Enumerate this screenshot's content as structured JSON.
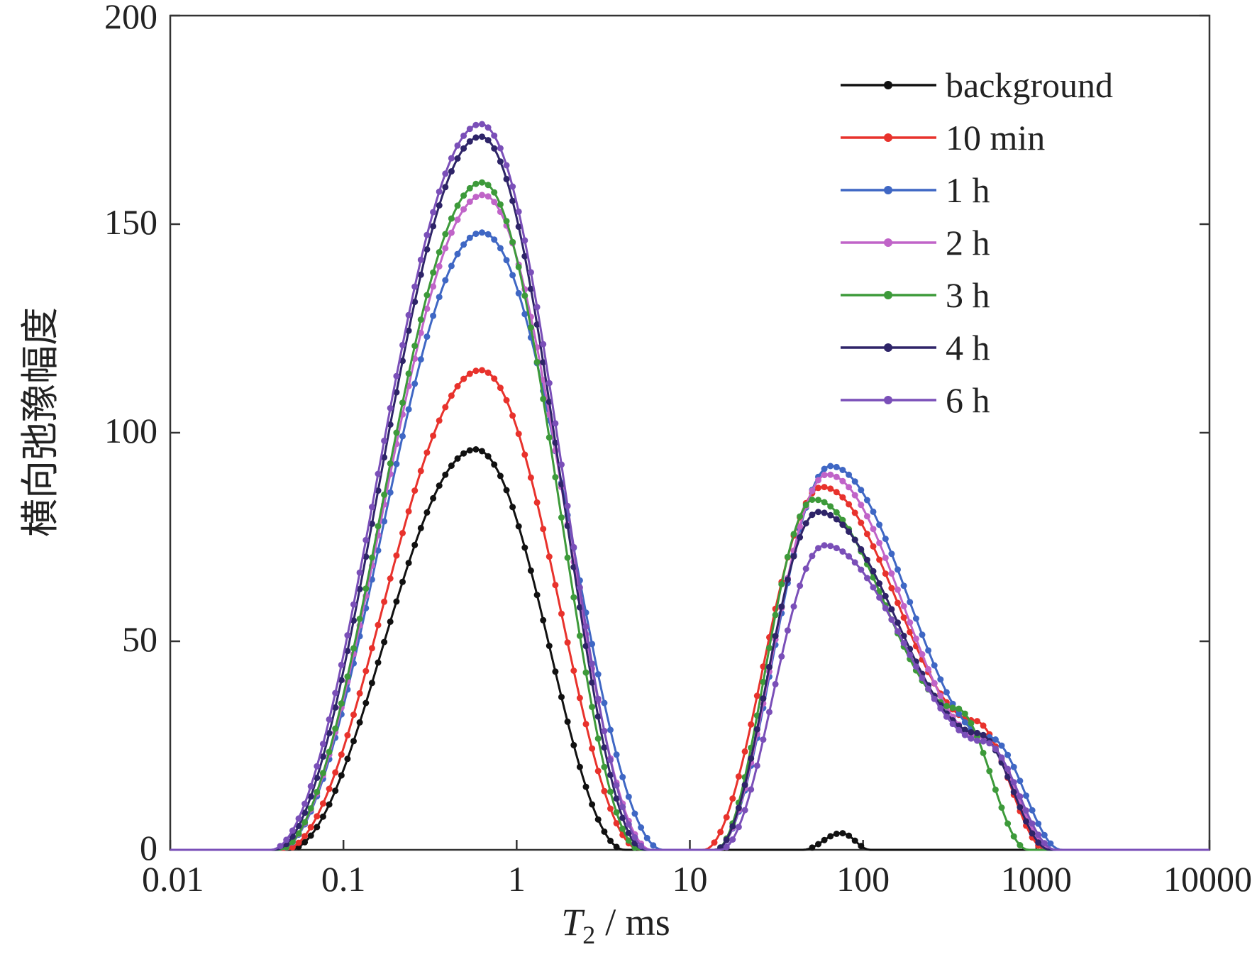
{
  "chart_data": {
    "type": "line",
    "title": "",
    "xlabel": "T2 / ms",
    "xlabel_parts": {
      "symbol": "T",
      "subscript": "2",
      "unit": "/ ms"
    },
    "ylabel": "横向弛豫幅度",
    "xscale": "log",
    "xlim": [
      0.01,
      10000
    ],
    "ylim": [
      0,
      200
    ],
    "x_ticks": [
      0.01,
      0.1,
      1,
      10,
      100,
      1000,
      10000
    ],
    "x_tick_labels": [
      "0.01",
      "0.1",
      "1",
      "10",
      "100",
      "1000",
      "10000"
    ],
    "y_ticks": [
      0,
      50,
      100,
      150,
      200
    ],
    "y_tick_labels": [
      "0",
      "50",
      "100",
      "150",
      "200"
    ],
    "legend_position": "top-right",
    "series": [
      {
        "name": "background",
        "color": "#111111",
        "peaks": [
          {
            "center": 0.58,
            "amp": 96,
            "start": 0.048,
            "end": 4.2,
            "bump": 0
          },
          {
            "center": 75,
            "amp": 4,
            "start": 45,
            "end": 110,
            "bump": 0
          }
        ]
      },
      {
        "name": "10 min",
        "color": "#e8322c",
        "peaks": [
          {
            "center": 0.62,
            "amp": 115,
            "start": 0.045,
            "end": 5.2,
            "bump": 0
          },
          {
            "center": 58,
            "amp": 87,
            "start": 12,
            "end": 1150,
            "bump": 31
          }
        ]
      },
      {
        "name": "1 h",
        "color": "#3f67c4",
        "peaks": [
          {
            "center": 0.63,
            "amp": 148,
            "start": 0.042,
            "end": 7.0,
            "bump": 0
          },
          {
            "center": 65,
            "amp": 92,
            "start": 14,
            "end": 1400,
            "bump": 27
          }
        ]
      },
      {
        "name": "2 h",
        "color": "#c064c8",
        "peaks": [
          {
            "center": 0.64,
            "amp": 157,
            "start": 0.042,
            "end": 6.0,
            "bump": 0
          },
          {
            "center": 62,
            "amp": 90,
            "start": 14,
            "end": 1250,
            "bump": 27
          }
        ]
      },
      {
        "name": "3 h",
        "color": "#3d9a3a",
        "peaks": [
          {
            "center": 0.63,
            "amp": 160,
            "start": 0.042,
            "end": 5.2,
            "bump": 0
          },
          {
            "center": 52,
            "amp": 84,
            "start": 14,
            "end": 900,
            "bump": 34
          }
        ]
      },
      {
        "name": "4 h",
        "color": "#2e2468",
        "peaks": [
          {
            "center": 0.62,
            "amp": 171,
            "start": 0.04,
            "end": 5.5,
            "bump": 0
          },
          {
            "center": 55,
            "amp": 81,
            "start": 14,
            "end": 1200,
            "bump": 28
          }
        ]
      },
      {
        "name": "6 h",
        "color": "#7a4fb8",
        "peaks": [
          {
            "center": 0.62,
            "amp": 174,
            "start": 0.038,
            "end": 5.8,
            "bump": 0
          },
          {
            "center": 60,
            "amp": 73,
            "start": 15,
            "end": 1300,
            "bump": 26
          }
        ]
      }
    ]
  }
}
